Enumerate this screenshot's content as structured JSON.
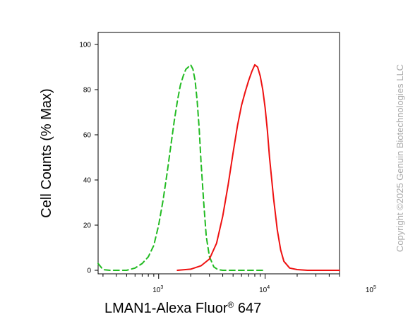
{
  "chart_data": {
    "type": "line",
    "ylabel": "Cell Counts (% Max)",
    "xlabel_main": "LMAN1-Alexa Fluor",
    "xlabel_sup": "®",
    "xlabel_tail": " 647",
    "x_scale": "log",
    "xlim": [
      270,
      50000
    ],
    "ylim": [
      0,
      100
    ],
    "y_ticks": [
      0,
      20,
      40,
      60,
      80,
      100
    ],
    "y_tick_labels": [
      "0",
      "20",
      "40",
      "60",
      "80",
      "100"
    ],
    "x_ticks": [
      1000,
      10000,
      100000
    ],
    "x_tick_labels": [
      {
        "base": "10",
        "exp": "3"
      },
      {
        "base": "10",
        "exp": "4"
      },
      {
        "base": "10",
        "exp": "5"
      }
    ],
    "grid": false,
    "series": [
      {
        "color": "#22bb22",
        "dash": "8,5",
        "x": [
          270,
          300,
          350,
          400,
          500,
          600,
          700,
          800,
          900,
          1000,
          1100,
          1200,
          1300,
          1400,
          1500,
          1600,
          1700,
          1800,
          1900,
          2000,
          2100,
          2200,
          2300,
          2400,
          2500,
          2650,
          2800,
          3000,
          3300,
          3600,
          4000,
          5000,
          6000,
          8000,
          10000
        ],
        "y": [
          3,
          0.3,
          0,
          0,
          0,
          1,
          3,
          6,
          11,
          20,
          31,
          43,
          55,
          66,
          75,
          82,
          86,
          89,
          90,
          91,
          89,
          84,
          75,
          63,
          48,
          30,
          15,
          6,
          1.5,
          0.3,
          0,
          0,
          0,
          0,
          0
        ]
      },
      {
        "color": "#ee1111",
        "dash": "",
        "x": [
          1500,
          2000,
          2500,
          3000,
          3500,
          4000,
          4500,
          5000,
          5500,
          6000,
          6500,
          7000,
          7500,
          8000,
          8500,
          9000,
          9500,
          10000,
          10500,
          11000,
          12000,
          13000,
          14000,
          15000,
          17000,
          20000,
          25000,
          30000,
          40000,
          50000
        ],
        "y": [
          0,
          0.5,
          2,
          5,
          12,
          24,
          38,
          52,
          64,
          73,
          79,
          84,
          88,
          91,
          90,
          86,
          80,
          72,
          62,
          50,
          32,
          18,
          9,
          4,
          1,
          0.3,
          0,
          0,
          0,
          0
        ]
      }
    ]
  },
  "watermark": {
    "text": "Copyright ©2025 Genuin Biotechnologies LLC"
  }
}
